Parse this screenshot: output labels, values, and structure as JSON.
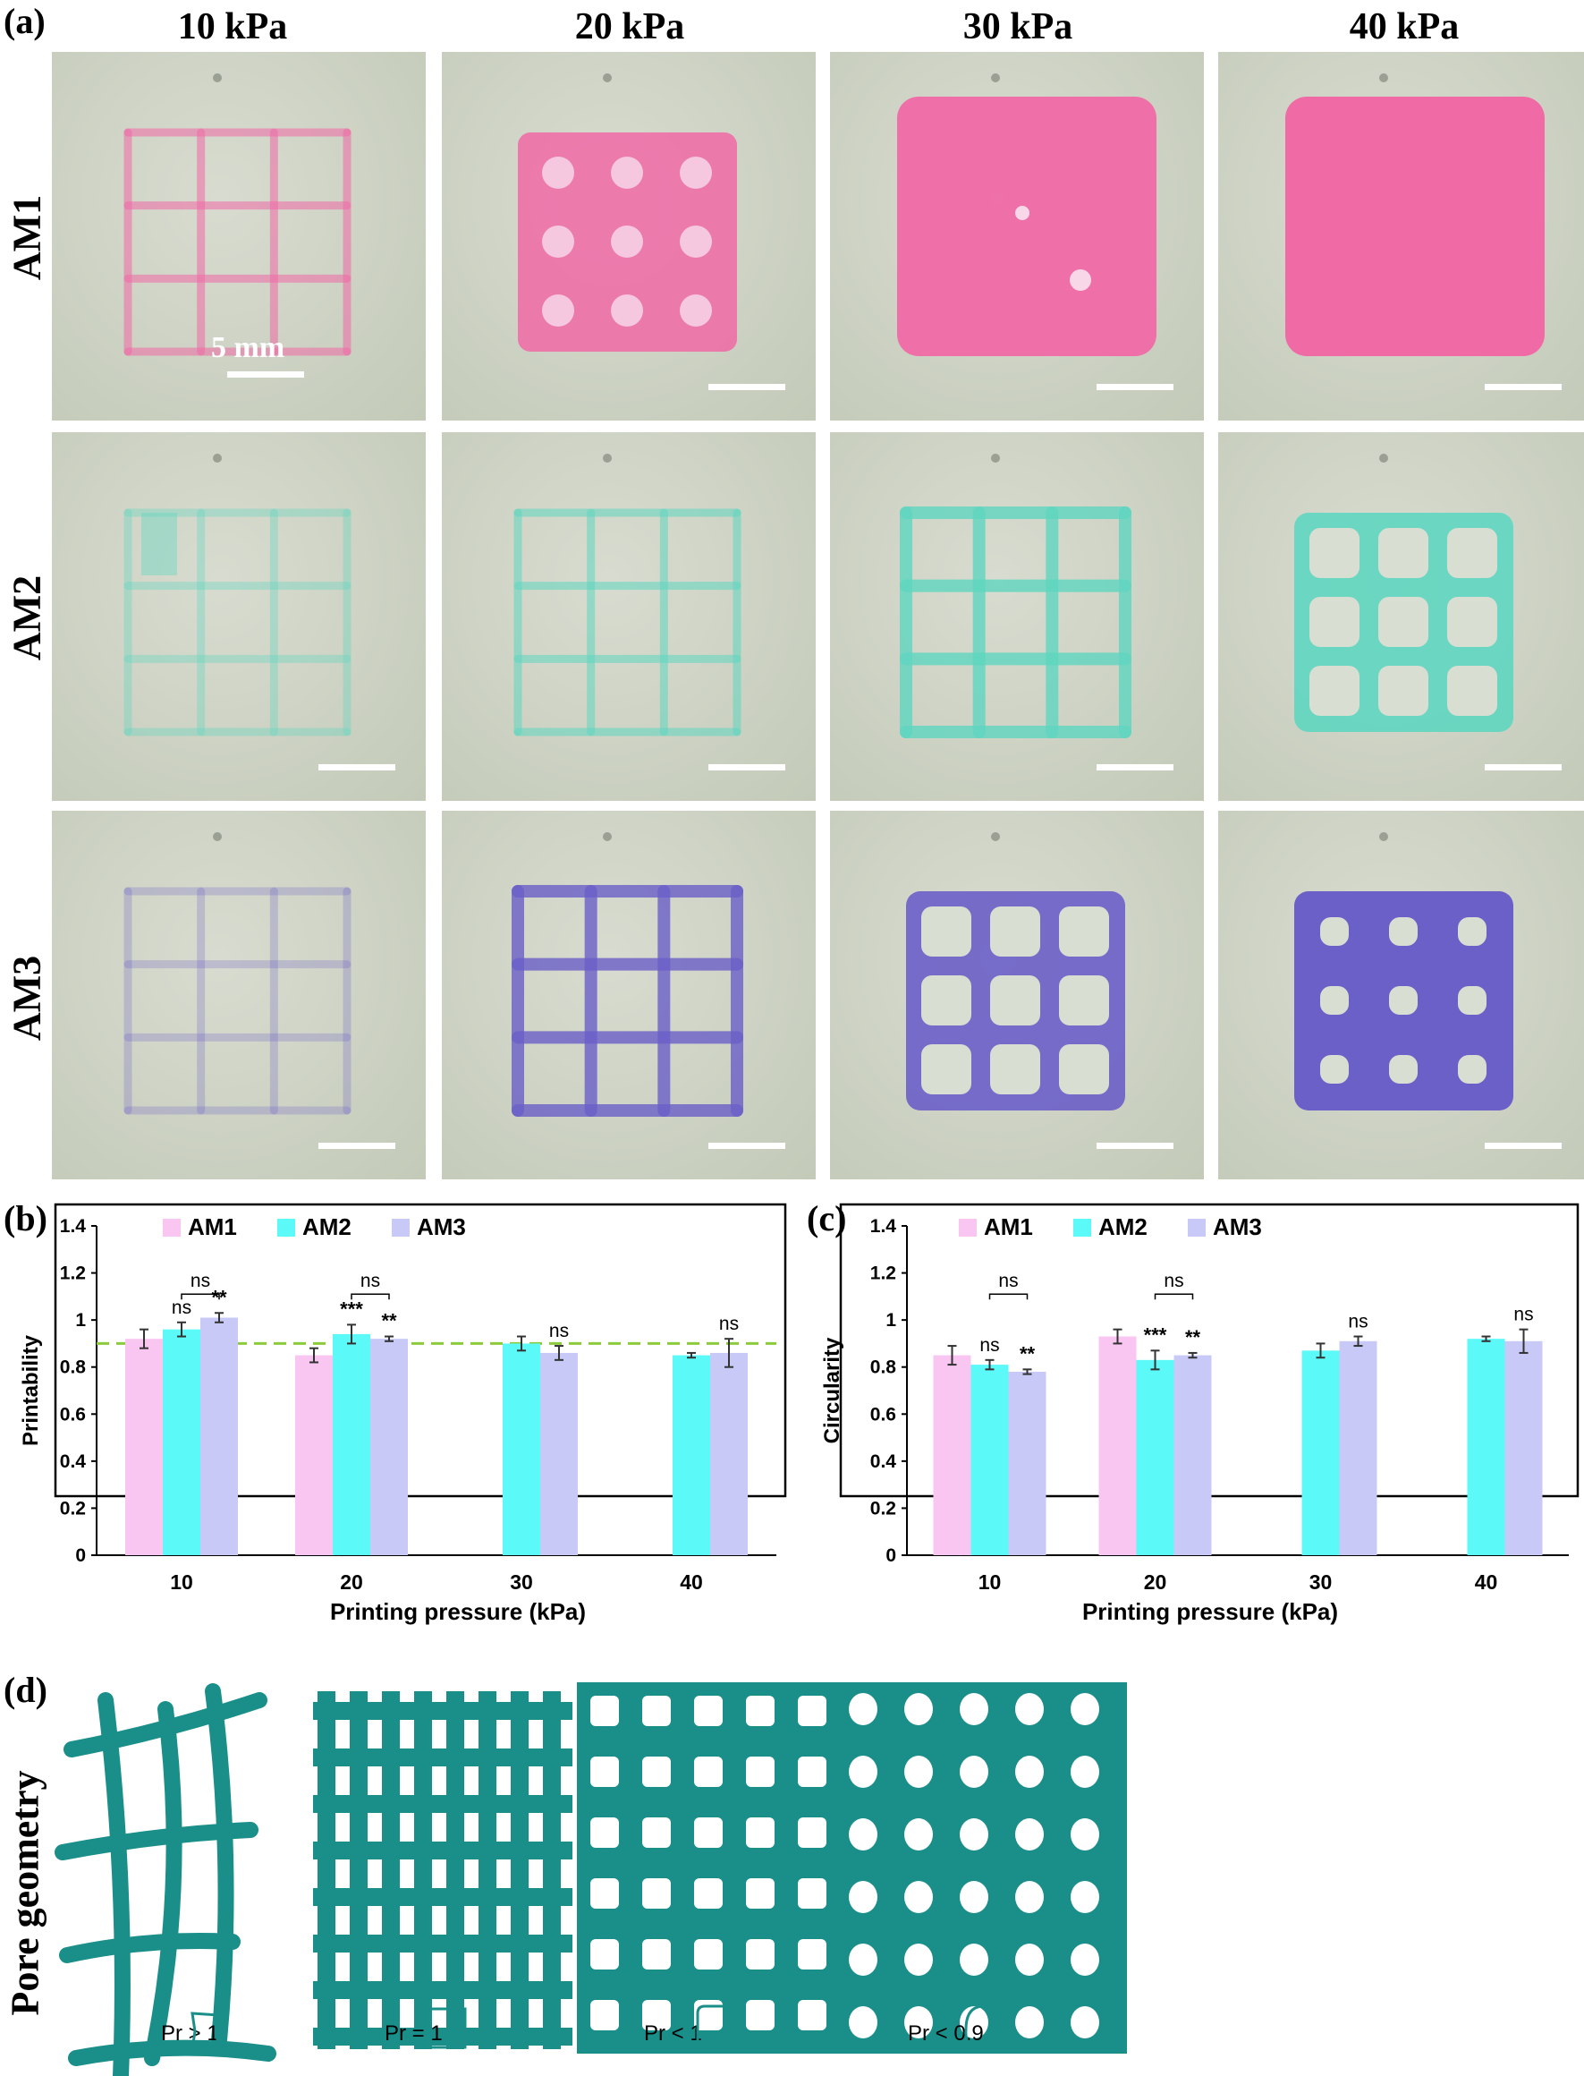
{
  "panel_a": {
    "tag": "(a)",
    "columns": [
      "10 kPa",
      "20 kPa",
      "30 kPa",
      "40 kPa"
    ],
    "rows": [
      "AM1",
      "AM2",
      "AM3"
    ],
    "scale_label": "5 mm",
    "colors": {
      "AM1": "#f06aa6",
      "AM2": "#5fd6c0",
      "AM3": "#6b5fc8"
    },
    "states": [
      [
        "grid-thin",
        "grid-pores",
        "filled-pores",
        "filled"
      ],
      [
        "grid-broken",
        "grid-thin",
        "grid-thick",
        "grid-pores"
      ],
      [
        "grid-faint",
        "grid-thick",
        "grid-pores",
        "grid-pores-dark"
      ]
    ]
  },
  "panel_b": {
    "tag": "(b)"
  },
  "panel_c": {
    "tag": "(c)"
  },
  "panel_d": {
    "tag": "(d)",
    "side_label": "Pore geometry",
    "labels": [
      "Pr > 1",
      "Pr = 1",
      "Pr < 1",
      "Pr < 0.9"
    ],
    "color": "#1a8f8a"
  },
  "chart_data": [
    {
      "type": "bar",
      "ylabel": "Printability",
      "xlabel": "Printing pressure (kPa)",
      "categories": [
        "10",
        "20",
        "30",
        "40"
      ],
      "ylim": [
        0,
        1.4
      ],
      "yticks": [
        "0",
        "0.2",
        "0.4",
        "0.6",
        "0.8",
        "1",
        "1.2",
        "1.4"
      ],
      "legend_position": "top-left",
      "reference_line": 0.9,
      "series": [
        {
          "name": "AM1",
          "color": "#f9c6f2",
          "values": [
            0.92,
            0.85,
            null,
            null
          ],
          "errors": [
            0.04,
            0.03,
            null,
            null
          ]
        },
        {
          "name": "AM2",
          "color": "#5cf9f9",
          "values": [
            0.96,
            0.94,
            0.9,
            0.85
          ],
          "errors": [
            0.03,
            0.04,
            0.03,
            0.01
          ]
        },
        {
          "name": "AM3",
          "color": "#c9c9f7",
          "values": [
            1.01,
            0.92,
            0.86,
            0.86
          ],
          "errors": [
            0.02,
            0.01,
            0.03,
            0.06
          ]
        }
      ],
      "annotations": [
        {
          "category": 0,
          "series": "AM2",
          "text": "ns"
        },
        {
          "category": 0,
          "series": "AM3",
          "text": "**"
        },
        {
          "category": 0,
          "bracket": true,
          "text": "ns"
        },
        {
          "category": 1,
          "series": "AM2",
          "text": "***"
        },
        {
          "category": 1,
          "series": "AM3",
          "text": "**"
        },
        {
          "category": 1,
          "bracket": true,
          "text": "ns"
        },
        {
          "category": 2,
          "series": "AM3",
          "text": "ns"
        },
        {
          "category": 3,
          "series": "AM3",
          "text": "ns"
        }
      ]
    },
    {
      "type": "bar",
      "ylabel": "Circularity",
      "xlabel": "Printing pressure (kPa)",
      "categories": [
        "10",
        "20",
        "30",
        "40"
      ],
      "ylim": [
        0,
        1.4
      ],
      "yticks": [
        "0",
        "0.2",
        "0.4",
        "0.6",
        "0.8",
        "1",
        "1.2",
        "1.4"
      ],
      "legend_position": "top-left",
      "series": [
        {
          "name": "AM1",
          "color": "#f9c6f2",
          "values": [
            0.85,
            0.93,
            null,
            null
          ],
          "errors": [
            0.04,
            0.03,
            null,
            null
          ]
        },
        {
          "name": "AM2",
          "color": "#5cf9f9",
          "values": [
            0.81,
            0.83,
            0.87,
            0.92
          ],
          "errors": [
            0.02,
            0.04,
            0.03,
            0.01
          ]
        },
        {
          "name": "AM3",
          "color": "#c9c9f7",
          "values": [
            0.78,
            0.85,
            0.91,
            0.91
          ],
          "errors": [
            0.01,
            0.01,
            0.02,
            0.05
          ]
        }
      ],
      "annotations": [
        {
          "category": 0,
          "series": "AM2",
          "text": "ns"
        },
        {
          "category": 0,
          "series": "AM3",
          "text": "**"
        },
        {
          "category": 0,
          "bracket": true,
          "text": "ns"
        },
        {
          "category": 1,
          "series": "AM2",
          "text": "***"
        },
        {
          "category": 1,
          "series": "AM3",
          "text": "**"
        },
        {
          "category": 1,
          "bracket": true,
          "text": "ns"
        },
        {
          "category": 2,
          "series": "AM3",
          "text": "ns"
        },
        {
          "category": 3,
          "series": "AM3",
          "text": "ns"
        }
      ]
    }
  ]
}
